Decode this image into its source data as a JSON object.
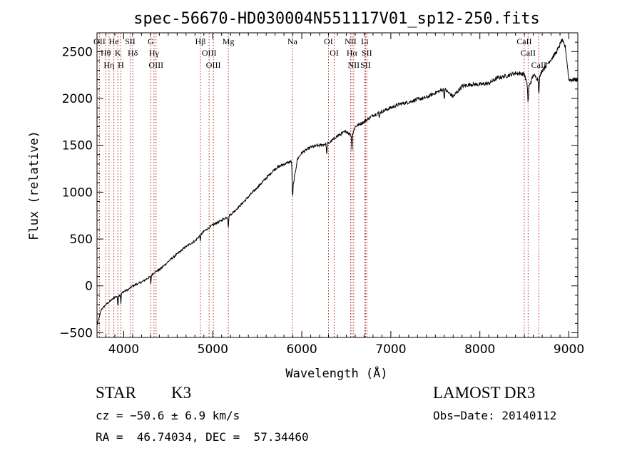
{
  "chart_data": {
    "type": "line",
    "title": "spec-56670-HD030004N551117V01_sp12-250.fits",
    "xlabel": "Wavelength (Å)",
    "ylabel": "Flux (relative)",
    "xlim": [
      3700,
      9100
    ],
    "ylim": [
      -550,
      2700
    ],
    "xticks": [
      4000,
      5000,
      6000,
      7000,
      8000,
      9000
    ],
    "xtick_labels": [
      "4000",
      "5000",
      "6000",
      "7000",
      "8000",
      "9000"
    ],
    "yticks": [
      -500,
      0,
      500,
      1000,
      1500,
      2000,
      2500
    ],
    "ytick_labels": [
      "−500",
      "0",
      "500",
      "1000",
      "1500",
      "2000",
      "2500"
    ],
    "series": [
      {
        "name": "flux",
        "color": "#000000",
        "x": [
          3700,
          3720,
          3750,
          3800,
          3850,
          3900,
          3950,
          4000,
          4050,
          4100,
          4150,
          4200,
          4250,
          4300,
          4350,
          4400,
          4500,
          4600,
          4700,
          4800,
          4900,
          5000,
          5100,
          5200,
          5300,
          5400,
          5500,
          5600,
          5700,
          5800,
          5890,
          5900,
          5950,
          6000,
          6100,
          6200,
          6300,
          6400,
          6500,
          6563,
          6600,
          6700,
          6800,
          6900,
          7000,
          7100,
          7200,
          7300,
          7400,
          7500,
          7600,
          7700,
          7800,
          7900,
          8000,
          8100,
          8200,
          8300,
          8400,
          8500,
          8542,
          8600,
          8662,
          8700,
          8800,
          8850,
          8880,
          8920,
          8960,
          9000
        ],
        "values": [
          -420,
          -350,
          -250,
          -200,
          -160,
          -120,
          -100,
          -60,
          -40,
          0,
          20,
          40,
          70,
          100,
          150,
          170,
          260,
          340,
          420,
          480,
          580,
          650,
          700,
          760,
          850,
          950,
          1050,
          1150,
          1250,
          1300,
          1330,
          1050,
          1350,
          1420,
          1480,
          1500,
          1520,
          1600,
          1650,
          1600,
          1700,
          1750,
          1820,
          1860,
          1900,
          1940,
          1960,
          1990,
          2010,
          2060,
          2100,
          2020,
          2130,
          2150,
          2150,
          2160,
          2220,
          2240,
          2270,
          2260,
          2100,
          2250,
          2200,
          2300,
          2420,
          2480,
          2530,
          2620,
          2550,
          2200
        ]
      }
    ],
    "lines": [
      {
        "name": "OII",
        "wavelength": 3727
      },
      {
        "name": "Hθ",
        "wavelength": 3798
      },
      {
        "name": "Hη",
        "wavelength": 3835
      },
      {
        "name": "He",
        "wavelength": 3889
      },
      {
        "name": "K",
        "wavelength": 3934
      },
      {
        "name": "H",
        "wavelength": 3968
      },
      {
        "name": "SII",
        "wavelength": 4072
      },
      {
        "name": "Hδ",
        "wavelength": 4102
      },
      {
        "name": "G",
        "wavelength": 4304
      },
      {
        "name": "Hγ",
        "wavelength": 4340
      },
      {
        "name": "OIII",
        "wavelength": 4363
      },
      {
        "name": "Hβ",
        "wavelength": 4861
      },
      {
        "name": "OIII",
        "wavelength": 4959
      },
      {
        "name": "OIII",
        "wavelength": 5007
      },
      {
        "name": "Mg",
        "wavelength": 5175
      },
      {
        "name": "Na",
        "wavelength": 5894
      },
      {
        "name": "OI",
        "wavelength": 6300
      },
      {
        "name": "OI",
        "wavelength": 6364
      },
      {
        "name": "NII",
        "wavelength": 6548
      },
      {
        "name": "Hα",
        "wavelength": 6563
      },
      {
        "name": "NII",
        "wavelength": 6583
      },
      {
        "name": "Li",
        "wavelength": 6707
      },
      {
        "name": "SII",
        "wavelength": 6716
      },
      {
        "name": "SII",
        "wavelength": 6731
      },
      {
        "name": "CaII",
        "wavelength": 8498
      },
      {
        "name": "CaII",
        "wavelength": 8542
      },
      {
        "name": "CaII",
        "wavelength": 8662
      }
    ]
  },
  "info": {
    "object_class": "STAR",
    "subclass": "K3",
    "survey": "LAMOST DR3",
    "redshift": "cz = −50.6 ± 6.9 km/s",
    "obs_date": "Obs−Date: 20140112",
    "coordinates": "RA =  46.74034, DEC =  57.34460"
  },
  "colors": {
    "line_marker": "#b22222",
    "spectrum": "#000000"
  }
}
